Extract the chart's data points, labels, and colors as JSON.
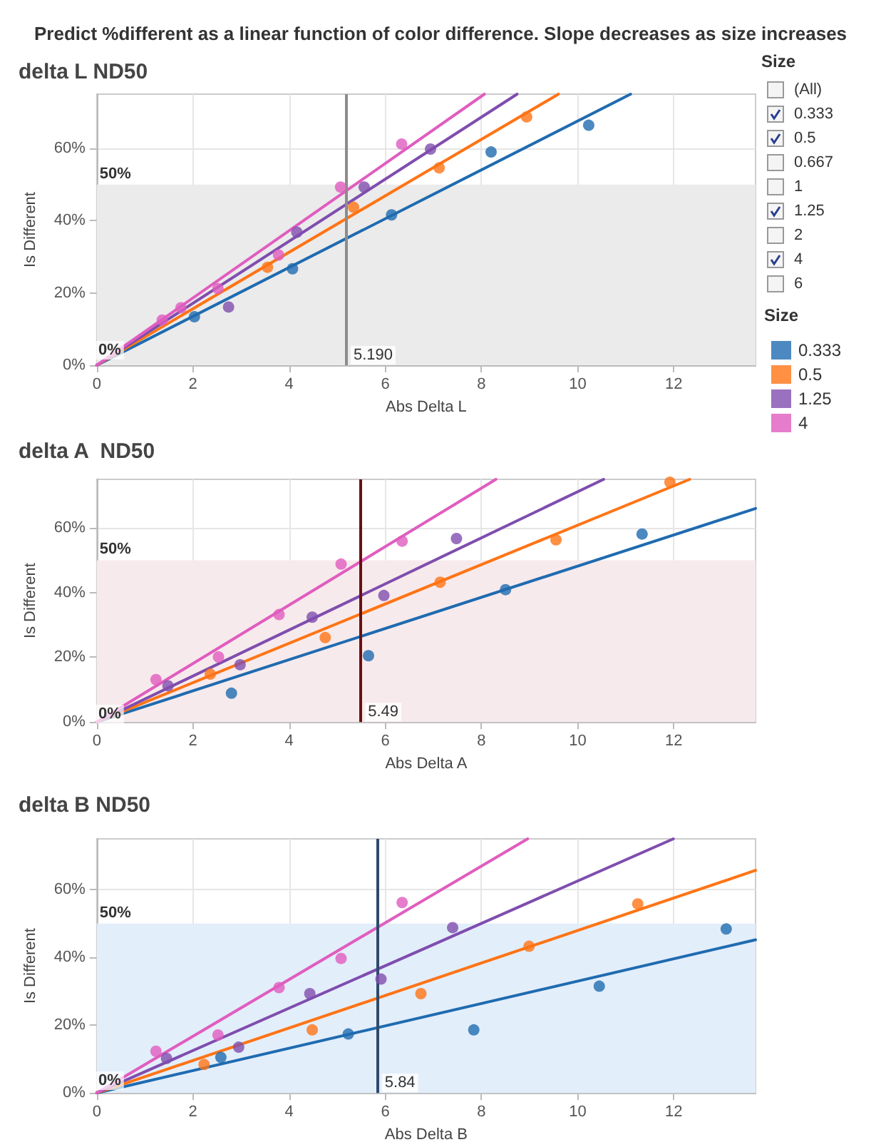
{
  "chart_data": [
    {
      "type": "scatter",
      "title": "Predict %different as a linear function of color difference. Slope decreases as size increases",
      "subtitle": "delta L ND50",
      "xlabel": "Abs Delta L",
      "ylabel": "Is Different",
      "legend_title": "Size",
      "legend": "right",
      "grid": true,
      "marker": "circle",
      "xlim": [
        0,
        13.7
      ],
      "xticks": [
        0,
        2,
        4,
        6,
        8,
        10,
        12
      ],
      "ylim": [
        0,
        75
      ],
      "yticks": [
        {
          "value": 0,
          "label": "0%"
        },
        {
          "value": 20,
          "label": "20%"
        },
        {
          "value": 40,
          "label": "40%"
        },
        {
          "value": 60,
          "label": "60%"
        }
      ],
      "ref_lines": [
        {
          "axis": "x",
          "value": 5.19,
          "label": "5.190",
          "color": "#8c8c8c"
        }
      ],
      "bands": [
        {
          "axis": "y",
          "from": 0,
          "to": 50,
          "label": "50%",
          "color": "#ebebeb"
        }
      ],
      "annotations": [
        "0%"
      ],
      "series": [
        {
          "name": "0.333",
          "color": "#1f6bb0",
          "x": [
            2.03,
            4.07,
            6.13,
            8.2,
            10.23
          ],
          "values": [
            13.4,
            26.7,
            41.6,
            59,
            66.4
          ]
        },
        {
          "name": "0.5",
          "color": "#ff7415",
          "x": [
            3.55,
            5.34,
            7.12,
            8.94
          ],
          "values": [
            27.1,
            43.7,
            54.6,
            68.7
          ]
        },
        {
          "name": "1.25",
          "color": "#7f4dae",
          "x": [
            2.74,
            4.16,
            5.56,
            6.94
          ],
          "values": [
            16.1,
            36.8,
            49.3,
            59.8
          ]
        },
        {
          "name": "4",
          "color": "#e05dbf",
          "x": [
            1.36,
            1.75,
            2.52,
            3.78,
            5.07,
            6.34
          ],
          "values": [
            12.5,
            15.9,
            21.2,
            30.5,
            49.3,
            61.2
          ]
        },
        {
          "type": "line",
          "marker": "none",
          "color": "#1f6bb0",
          "x": [
            0,
            11.1
          ],
          "values": [
            0,
            75
          ]
        },
        {
          "type": "line",
          "marker": "none",
          "color": "#ff7415",
          "x": [
            0,
            9.6
          ],
          "values": [
            0,
            75
          ]
        },
        {
          "type": "line",
          "marker": "none",
          "color": "#7f4dae",
          "x": [
            0,
            8.74
          ],
          "values": [
            0,
            75
          ]
        },
        {
          "type": "line",
          "marker": "none",
          "color": "#e05dbf",
          "x": [
            0,
            8.06
          ],
          "values": [
            0,
            75
          ]
        }
      ]
    },
    {
      "type": "scatter",
      "title": "delta A  ND50",
      "xlabel": "Abs Delta A",
      "ylabel": "Is Different",
      "grid": true,
      "marker": "circle",
      "xlim": [
        0,
        13.7
      ],
      "xticks": [
        0,
        2,
        4,
        6,
        8,
        10,
        12
      ],
      "ylim": [
        0,
        75
      ],
      "yticks": [
        {
          "value": 0,
          "label": "0%"
        },
        {
          "value": 20,
          "label": "20%"
        },
        {
          "value": 40,
          "label": "40%"
        },
        {
          "value": 60,
          "label": "60%"
        }
      ],
      "ref_lines": [
        {
          "axis": "x",
          "value": 5.49,
          "label": "5.49",
          "color": "#6b0f12"
        }
      ],
      "bands": [
        {
          "axis": "y",
          "from": 0,
          "to": 50,
          "label": "50%",
          "color": "#f7eaec"
        }
      ],
      "annotations": [
        "0%"
      ],
      "series": [
        {
          "color": "#1f6bb0",
          "x": [
            2.8,
            5.65,
            8.5,
            11.34
          ],
          "values": [
            8.9,
            20.5,
            40.9,
            58.1
          ]
        },
        {
          "color": "#ff7415",
          "x": [
            2.36,
            4.75,
            7.14,
            9.55,
            11.92
          ],
          "values": [
            14.8,
            26.1,
            43.2,
            56.3,
            74.1
          ]
        },
        {
          "color": "#7f4dae",
          "x": [
            1.48,
            2.98,
            4.48,
            5.97,
            7.48
          ],
          "values": [
            11.2,
            17.7,
            32.4,
            39.1,
            56.7
          ]
        },
        {
          "color": "#e05dbf",
          "x": [
            1.23,
            2.53,
            3.79,
            5.08,
            6.35
          ],
          "values": [
            13.1,
            20.1,
            33.2,
            48.8,
            55.9
          ]
        },
        {
          "type": "line",
          "marker": "none",
          "color": "#1f6bb0",
          "x": [
            0,
            13.7
          ],
          "values": [
            0,
            66
          ]
        },
        {
          "type": "line",
          "marker": "none",
          "color": "#ff7415",
          "x": [
            0,
            12.33
          ],
          "values": [
            0,
            75
          ]
        },
        {
          "type": "line",
          "marker": "none",
          "color": "#7f4dae",
          "x": [
            0,
            10.54
          ],
          "values": [
            0,
            75
          ]
        },
        {
          "type": "line",
          "marker": "none",
          "color": "#e05dbf",
          "x": [
            0,
            8.3
          ],
          "values": [
            0,
            75
          ]
        }
      ]
    },
    {
      "type": "scatter",
      "title": "delta B ND50",
      "xlabel": "Abs Delta B",
      "ylabel": "Is Different",
      "grid": true,
      "marker": "circle",
      "xlim": [
        0,
        13.7
      ],
      "xticks": [
        0,
        2,
        4,
        6,
        8,
        10,
        12
      ],
      "ylim": [
        0,
        75
      ],
      "yticks": [
        {
          "value": 0,
          "label": "0%"
        },
        {
          "value": 20,
          "label": "20%"
        },
        {
          "value": 40,
          "label": "40%"
        },
        {
          "value": 60,
          "label": "60%"
        }
      ],
      "ref_lines": [
        {
          "axis": "x",
          "value": 5.84,
          "label": "5.84",
          "color": "#2e4a6b"
        }
      ],
      "bands": [
        {
          "axis": "y",
          "from": 0,
          "to": 50,
          "label": "50%",
          "color": "#e3eefb"
        }
      ],
      "annotations": [
        "0%"
      ],
      "series": [
        {
          "color": "#1f6bb0",
          "x": [
            2.58,
            5.23,
            7.84,
            10.45,
            13.09
          ],
          "values": [
            10.5,
            17.4,
            18.6,
            31.5,
            48.4
          ]
        },
        {
          "color": "#ff7415",
          "x": [
            2.23,
            4.48,
            6.74,
            8.99,
            11.25
          ],
          "values": [
            8.4,
            18.6,
            29.3,
            43.3,
            55.8
          ]
        },
        {
          "color": "#7f4dae",
          "x": [
            1.45,
            2.95,
            4.43,
            5.91,
            7.4
          ],
          "values": [
            10.2,
            13.5,
            29.3,
            33.6,
            48.8
          ]
        },
        {
          "color": "#e05dbf",
          "x": [
            1.23,
            2.52,
            3.79,
            5.08,
            6.35
          ],
          "values": [
            12.3,
            17.1,
            31.1,
            39.7,
            56.2
          ]
        },
        {
          "type": "line",
          "marker": "none",
          "color": "#1f6bb0",
          "x": [
            0,
            13.7
          ],
          "values": [
            0,
            45.2
          ]
        },
        {
          "type": "line",
          "marker": "none",
          "color": "#ff7415",
          "x": [
            0,
            13.7
          ],
          "values": [
            0,
            65.7
          ]
        },
        {
          "type": "line",
          "marker": "none",
          "color": "#7f4dae",
          "x": [
            0,
            11.99
          ],
          "values": [
            0,
            75
          ]
        },
        {
          "type": "line",
          "marker": "none",
          "color": "#e05dbf",
          "x": [
            0,
            8.96
          ],
          "values": [
            0,
            75
          ]
        }
      ]
    },
    {
      "type": "other",
      "title": "Size",
      "categories": [
        "(All)",
        "0.333",
        "0.5",
        "0.667",
        "1",
        "1.25",
        "2",
        "4",
        "6"
      ]
    }
  ]
}
